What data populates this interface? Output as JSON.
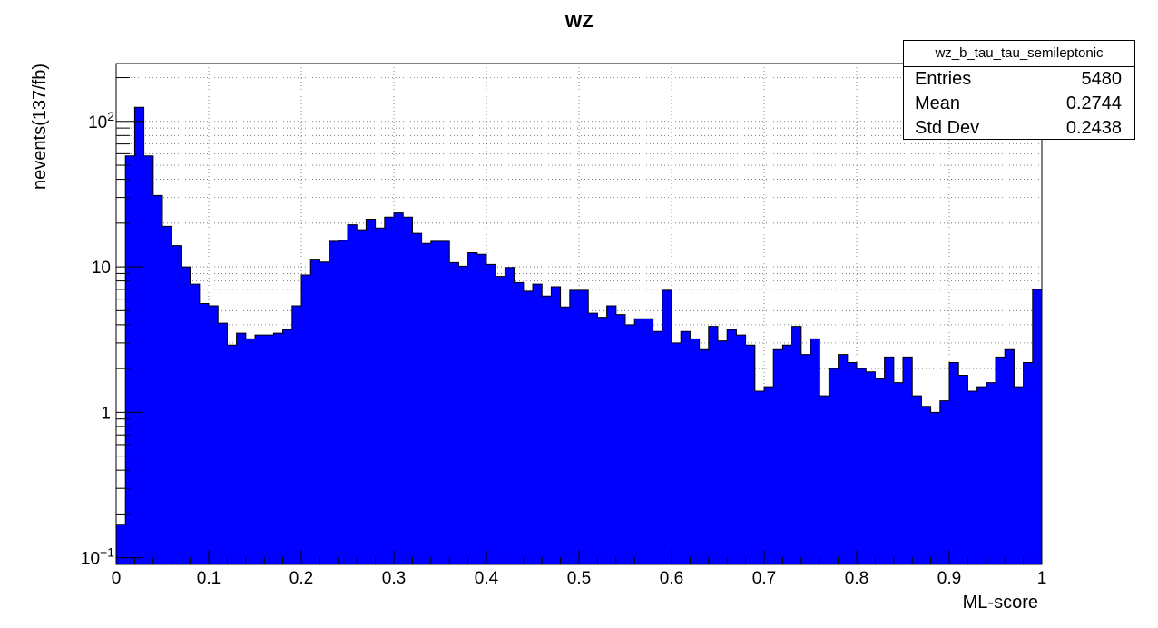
{
  "chart_data": {
    "type": "bar",
    "title": "WZ",
    "xlabel": "ML-score",
    "ylabel": "nevents(137/fb)",
    "xlim": [
      0,
      1
    ],
    "ylim": [
      0.09,
      250
    ],
    "yscale": "log",
    "grid": true,
    "bin_width": 0.01,
    "x_tick_labels": [
      "0",
      "0.1",
      "0.2",
      "0.3",
      "0.4",
      "0.5",
      "0.6",
      "0.7",
      "0.8",
      "0.9",
      "1"
    ],
    "fill_color": "#0000ff",
    "series": [
      {
        "name": "wz_b_tau_tau_semileptonic",
        "values": [
          0.17,
          58,
          125,
          58,
          31,
          19,
          14,
          10,
          7.6,
          5.6,
          5.4,
          4.1,
          2.9,
          3.5,
          3.2,
          3.4,
          3.4,
          3.5,
          3.7,
          5.4,
          8.8,
          11.3,
          10.8,
          15,
          15.2,
          19.5,
          18,
          21.3,
          18.5,
          22,
          23.5,
          22,
          17,
          14.5,
          15,
          15,
          10.7,
          10.1,
          12.5,
          12.2,
          10.4,
          8.6,
          9.9,
          7.8,
          6.8,
          7.6,
          6.3,
          7.3,
          5.3,
          6.9,
          6.9,
          4.8,
          4.5,
          5.4,
          4.7,
          4.0,
          4.4,
          4.4,
          3.6,
          6.9,
          3.0,
          3.6,
          3.2,
          2.7,
          3.9,
          3.1,
          3.7,
          3.4,
          2.9,
          1.4,
          1.5,
          2.7,
          2.9,
          3.9,
          2.5,
          3.2,
          1.3,
          2.0,
          2.5,
          2.2,
          2.0,
          1.9,
          1.7,
          2.4,
          1.6,
          2.4,
          1.3,
          1.1,
          1.0,
          1.2,
          2.2,
          1.8,
          1.4,
          1.5,
          1.6,
          2.4,
          2.7,
          1.5,
          2.2,
          7.0
        ]
      }
    ]
  },
  "stats_box": {
    "title": "wz_b_tau_tau_semileptonic",
    "entries_label": "Entries",
    "entries_value": "5480",
    "mean_label": "Mean",
    "mean_value": "0.2744",
    "std_label": "Std Dev",
    "std_value": "0.2438"
  }
}
